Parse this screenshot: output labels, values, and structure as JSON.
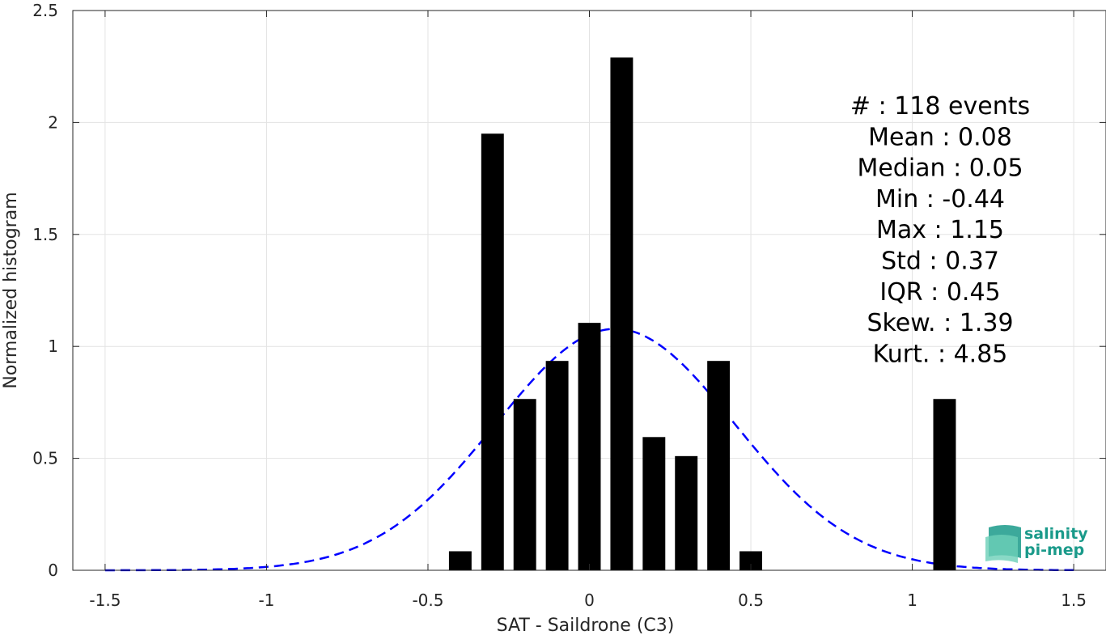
{
  "chart_data": {
    "type": "bar",
    "xlabel": "SAT - Saildrone (C3)",
    "ylabel": "Normalized histogram",
    "xlim": [
      -1.6,
      1.6
    ],
    "ylim": [
      0,
      2.5
    ],
    "xticks": [
      -1.5,
      -1,
      -0.5,
      0,
      0.5,
      1,
      1.5
    ],
    "xtick_labels": [
      "-1.5",
      "-1",
      "-0.5",
      "0",
      "0.5",
      "1",
      "1.5"
    ],
    "yticks": [
      0,
      0.5,
      1,
      1.5,
      2,
      2.5
    ],
    "ytick_labels": [
      "0",
      "0.5",
      "1",
      "1.5",
      "2",
      "2.5"
    ],
    "grid": true,
    "bar_width": 0.07,
    "bars": [
      {
        "x": -0.4,
        "value": 0.085
      },
      {
        "x": -0.3,
        "value": 1.95
      },
      {
        "x": -0.2,
        "value": 0.765
      },
      {
        "x": -0.1,
        "value": 0.935
      },
      {
        "x": 0.0,
        "value": 1.105
      },
      {
        "x": 0.1,
        "value": 2.29
      },
      {
        "x": 0.2,
        "value": 0.595
      },
      {
        "x": 0.3,
        "value": 0.51
      },
      {
        "x": 0.4,
        "value": 0.935
      },
      {
        "x": 0.5,
        "value": 0.085
      },
      {
        "x": 1.1,
        "value": 0.765
      }
    ],
    "fit_curve": {
      "style": "dashed",
      "color": "#0000ff",
      "mean": 0.08,
      "std": 0.37,
      "x_range": [
        -1.5,
        1.5
      ]
    },
    "bar_color": "#000000"
  },
  "stats": [
    {
      "label": "#  : 118 events"
    },
    {
      "label": "Mean : 0.08"
    },
    {
      "label": "Median : 0.05"
    },
    {
      "label": "Min : -0.44"
    },
    {
      "label": "Max : 1.15"
    },
    {
      "label": "Std : 0.37"
    },
    {
      "label": "IQR : 0.45"
    },
    {
      "label": "Skew. : 1.39"
    },
    {
      "label": "Kurt. : 4.85"
    }
  ],
  "logo": {
    "line1": "salinity",
    "line2": "pi-mep",
    "color": "#1a9a8a"
  }
}
